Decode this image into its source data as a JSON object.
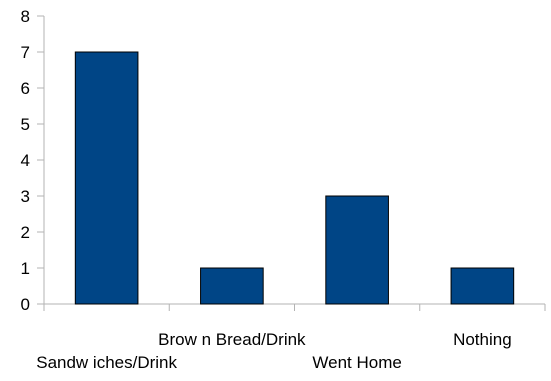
{
  "chart_data": {
    "type": "bar",
    "categories": [
      "Sandw iches/Drink",
      "Brow n Bread/Drink",
      "Went Home",
      "Nothing"
    ],
    "values": [
      7,
      1,
      3,
      1
    ],
    "ylim": [
      0,
      8
    ],
    "yticks": [
      0,
      1,
      2,
      3,
      4,
      5,
      6,
      7,
      8
    ],
    "bar_color": "#004586",
    "bar_stroke": "#000000",
    "axis_color": "#b3b3b3",
    "grid": false,
    "legend": "none"
  }
}
